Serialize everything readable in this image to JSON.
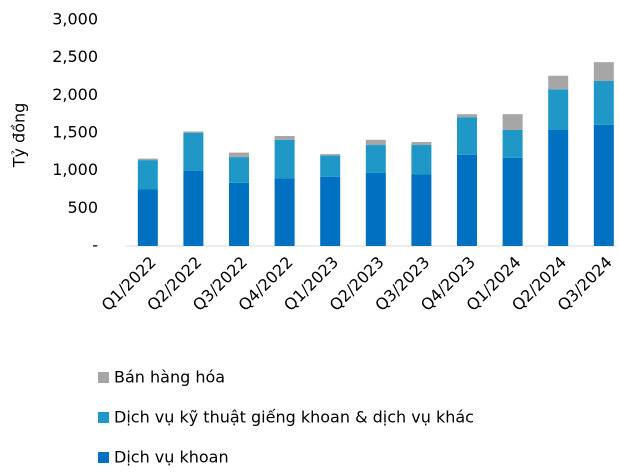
{
  "chart_data": {
    "type": "stacked_bar",
    "y_label": "Tỷ đồng",
    "categories": [
      "Q1/2022",
      "Q2/2022",
      "Q3/2022",
      "Q4/2022",
      "Q1/2023",
      "Q2/2023",
      "Q3/2023",
      "Q4/2023",
      "Q1/2024",
      "Q2/2024",
      "Q3/2024"
    ],
    "series": [
      {
        "name": "Dịch vụ khoan",
        "color": "#0070c0",
        "values": [
          750,
          1000,
          840,
          900,
          920,
          970,
          950,
          1210,
          1170,
          1540,
          1610
        ]
      },
      {
        "name": "Dịch vụ kỹ thuật giếng khoan & dịch vụ khác",
        "color": "#1f97c7",
        "values": [
          390,
          500,
          340,
          510,
          280,
          370,
          390,
          500,
          370,
          540,
          580
        ]
      },
      {
        "name": "Bán hàng hóa",
        "color": "#a6a6a6",
        "values": [
          20,
          20,
          60,
          50,
          20,
          70,
          40,
          40,
          210,
          180,
          250
        ]
      }
    ],
    "ylim": [
      0,
      3000
    ],
    "yticks": [
      {
        "value": 0,
        "label": "-"
      },
      500,
      {
        "value": 1000,
        "label": "1,000"
      },
      {
        "value": 1500,
        "label": "1,500"
      },
      {
        "value": 2000,
        "label": "2,000"
      },
      {
        "value": 2500,
        "label": "2,500"
      },
      {
        "value": 3000,
        "label": "3,000"
      }
    ],
    "legend": "bottom"
  }
}
